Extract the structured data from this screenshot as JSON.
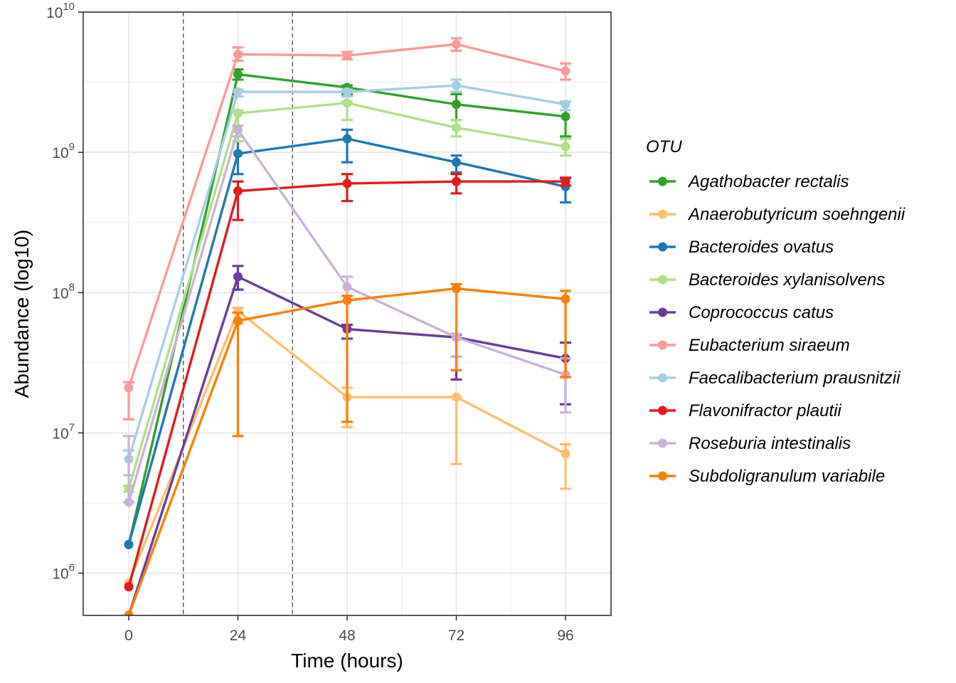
{
  "chart_data": {
    "type": "line",
    "xlabel": "Time (hours)",
    "ylabel": "Abundance (log10)",
    "y_scale": "log10",
    "ylim": [
      500000,
      10000000000
    ],
    "xlim": [
      -10,
      106
    ],
    "grid": true,
    "x_ticks": [
      0,
      24,
      48,
      72,
      96
    ],
    "y_ticks": [
      {
        "value": 1000000,
        "base": "10",
        "exp": "6"
      },
      {
        "value": 10000000,
        "base": "10",
        "exp": "7"
      },
      {
        "value": 100000000,
        "base": "10",
        "exp": "8"
      },
      {
        "value": 1000000000,
        "base": "10",
        "exp": "9"
      },
      {
        "value": 10000000000,
        "base": "10",
        "exp": "10"
      }
    ],
    "vlines": [
      12,
      36
    ],
    "legend_title": "OTU",
    "legend_position": "right",
    "x": [
      0,
      24,
      48,
      72,
      96
    ],
    "series": [
      {
        "name": "Agathobacter rectalis",
        "color": "#33a02c",
        "values": [
          1600000,
          3600000000,
          2900000000,
          2200000000,
          1800000000
        ],
        "lower": [
          1600000,
          3300000000,
          2600000000,
          1700000000,
          1300000000
        ],
        "upper": [
          1600000,
          3900000000,
          3000000000,
          2600000000,
          2300000000
        ]
      },
      {
        "name": "Anaerobutyricum soehngenii",
        "color": "#fdbf6f",
        "values": [
          850000,
          74000000,
          18000000,
          18000000,
          7100000
        ],
        "lower": [
          850000,
          60000000,
          11000000,
          6000000,
          4000000
        ],
        "upper": [
          850000,
          78000000,
          21000000,
          18000000,
          8300000
        ]
      },
      {
        "name": "Bacteroides ovatus",
        "color": "#1f78b4",
        "values": [
          1600000,
          980000000,
          1250000000,
          850000000,
          570000000
        ],
        "lower": [
          1600000,
          700000000,
          850000000,
          720000000,
          440000000
        ],
        "upper": [
          1600000,
          1200000000,
          1450000000,
          950000000,
          650000000
        ]
      },
      {
        "name": "Bacteroides xylanisolvens",
        "color": "#b2df8a",
        "values": [
          4000000,
          1900000000,
          2250000000,
          1500000000,
          1100000000
        ],
        "lower": [
          3800000,
          1200000000,
          1700000000,
          1300000000,
          950000000
        ],
        "upper": [
          4200000,
          2000000000,
          2300000000,
          1700000000,
          1250000000
        ]
      },
      {
        "name": "Coprococcus catus",
        "color": "#6a3d9a",
        "values": [
          500000,
          130000000,
          55000000,
          48000000,
          34000000
        ],
        "lower": [
          500000,
          105000000,
          47000000,
          24000000,
          16000000
        ],
        "upper": [
          500000,
          155000000,
          59000000,
          50000000,
          44000000
        ]
      },
      {
        "name": "Eubacterium siraeum",
        "color": "#fb9a99",
        "values": [
          21000000,
          5000000000,
          4900000000,
          5900000000,
          3800000000
        ],
        "lower": [
          12500000,
          4500000000,
          4600000000,
          5300000000,
          3300000000
        ],
        "upper": [
          23000000,
          5600000000,
          5200000000,
          6500000000,
          4300000000
        ]
      },
      {
        "name": "Faecalibacterium prausnitzii",
        "color": "#a6cee3",
        "values": [
          6500000,
          2700000000,
          2700000000,
          3000000000,
          2200000000
        ],
        "lower": [
          5000000,
          2500000000,
          2500000000,
          2700000000,
          2000000000
        ],
        "upper": [
          7500000,
          2800000000,
          2800000000,
          3300000000,
          2300000000
        ]
      },
      {
        "name": "Flavonifractor plautii",
        "color": "#e31a1c",
        "values": [
          800000,
          530000000,
          600000000,
          620000000,
          620000000
        ],
        "lower": [
          800000,
          330000000,
          450000000,
          510000000,
          580000000
        ],
        "upper": [
          800000,
          620000000,
          700000000,
          700000000,
          660000000
        ]
      },
      {
        "name": "Roseburia intestinalis",
        "color": "#cab2d6",
        "values": [
          3200000,
          1450000000,
          110000000,
          48000000,
          26000000
        ],
        "lower": [
          3200000,
          1300000000,
          95000000,
          35000000,
          14000000
        ],
        "upper": [
          9500000,
          1550000000,
          130000000,
          51000000,
          34000000
        ]
      },
      {
        "name": "Subdoligranulum variabile",
        "color": "#ff7f00",
        "values": [
          500000,
          63000000,
          88000000,
          107000000,
          90000000
        ],
        "lower": [
          500000,
          9500000,
          12000000,
          28000000,
          25000000
        ],
        "upper": [
          500000,
          72000000,
          95000000,
          115000000,
          103000000
        ]
      }
    ]
  }
}
